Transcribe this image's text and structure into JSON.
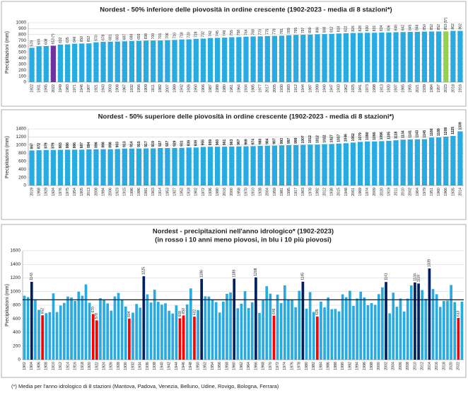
{
  "chart_data": [
    {
      "type": "bar",
      "title": "Nordest - 50% inferiore delle piovosità in ordine crescente (1902-2023 - media di 8 stazioni*)",
      "y_label": "Precipitazioni (mm)",
      "categories": [
        "1922",
        "1931",
        "1945",
        "2022",
        "1949",
        "1983",
        "1971",
        "1946",
        "1907",
        "1921",
        "1943",
        "2003",
        "1908",
        "1967",
        "1932",
        "1956",
        "1909",
        "1911",
        "1982",
        "2007",
        "1989",
        "1942",
        "1926",
        "1950",
        "1906",
        "1987",
        "1988",
        "1980",
        "1961",
        "1964",
        "1934",
        "1985",
        "1977",
        "2017",
        "2005",
        "1930",
        "1993",
        "1912",
        "1944",
        "1997",
        "1999",
        "1940",
        "1947",
        "1933",
        "1962",
        "1925",
        "1941",
        "1973",
        "1998",
        "1913",
        "1920",
        "1937",
        "1965",
        "1955",
        "2021",
        "1939",
        "1984",
        "1957",
        "2023",
        "2018",
        "1916"
      ],
      "values": [
        578,
        604,
        608,
        613,
        632,
        635,
        646,
        650,
        652,
        670,
        678,
        681,
        683,
        687,
        690,
        693,
        698,
        700,
        701,
        706,
        710,
        718,
        720,
        728,
        732,
        742,
        745,
        749,
        755,
        758,
        764,
        768,
        770,
        775,
        778,
        781,
        789,
        795,
        797,
        800,
        806,
        808,
        812,
        818,
        822,
        826,
        828,
        830,
        831,
        834,
        836,
        840,
        842,
        845,
        846,
        850,
        852,
        852,
        853,
        862,
        862
      ],
      "value_labels": [
        null,
        null,
        null,
        "613 (*)",
        null,
        null,
        null,
        null,
        null,
        null,
        null,
        null,
        null,
        null,
        null,
        null,
        null,
        null,
        null,
        null,
        null,
        null,
        null,
        null,
        null,
        null,
        null,
        null,
        null,
        null,
        null,
        null,
        null,
        null,
        null,
        null,
        null,
        null,
        null,
        null,
        null,
        null,
        null,
        null,
        null,
        null,
        null,
        null,
        null,
        null,
        null,
        null,
        null,
        null,
        null,
        null,
        null,
        null,
        "853 (5*)",
        null,
        null
      ],
      "color": "#29abe2",
      "colors": [
        "#29abe2",
        "#29abe2",
        "#29abe2",
        "#7030a0",
        "#29abe2",
        "#29abe2",
        "#29abe2",
        "#29abe2",
        "#29abe2",
        "#29abe2",
        "#29abe2",
        "#29abe2",
        "#29abe2",
        "#29abe2",
        "#29abe2",
        "#29abe2",
        "#29abe2",
        "#29abe2",
        "#29abe2",
        "#29abe2",
        "#29abe2",
        "#29abe2",
        "#29abe2",
        "#29abe2",
        "#29abe2",
        "#29abe2",
        "#29abe2",
        "#29abe2",
        "#29abe2",
        "#29abe2",
        "#29abe2",
        "#29abe2",
        "#29abe2",
        "#29abe2",
        "#29abe2",
        "#29abe2",
        "#29abe2",
        "#29abe2",
        "#29abe2",
        "#29abe2",
        "#29abe2",
        "#29abe2",
        "#29abe2",
        "#29abe2",
        "#29abe2",
        "#29abe2",
        "#29abe2",
        "#29abe2",
        "#29abe2",
        "#29abe2",
        "#29abe2",
        "#29abe2",
        "#29abe2",
        "#29abe2",
        "#29abe2",
        "#29abe2",
        "#29abe2",
        "#29abe2",
        "#92d050",
        "#29abe2",
        "#29abe2"
      ],
      "data_labels": "all",
      "ylim": [
        0,
        1000
      ],
      "yticks": [
        0,
        100,
        200,
        300,
        400,
        500,
        600,
        700,
        800,
        900,
        1000
      ],
      "grid": true
    },
    {
      "type": "bar",
      "title": "Nordest - 50% superiore delle piovosità in ordine crescente (1902-2023 - media di 8 stazioni*)",
      "y_label": "Precipitazioni (mm)",
      "categories": [
        "2019",
        "1968",
        "1929",
        "1924",
        "1976",
        "1975",
        "1954",
        "1905",
        "2013",
        "2008",
        "1994",
        "2006",
        "1923",
        "1915",
        "1996",
        "1986",
        "1991",
        "1903",
        "1914",
        "1953",
        "1927",
        "1952",
        "1918",
        "1902",
        "1972",
        "1936",
        "1990",
        "2016",
        "2000",
        "1958",
        "1970",
        "1910",
        "1928",
        "2004",
        "1959",
        "1981",
        "1995",
        "1917",
        "1963",
        "1978",
        "1992",
        "2012",
        "1938",
        "2015",
        "1948",
        "2001",
        "1969",
        "1974",
        "2009",
        "2020",
        "1919",
        "2011",
        "2010",
        "2002",
        "1904",
        "1979",
        "1951",
        "1960",
        "1966",
        "1935",
        "2014"
      ],
      "values": [
        867,
        872,
        879,
        879,
        883,
        886,
        886,
        887,
        894,
        896,
        898,
        898,
        903,
        913,
        914,
        915,
        917,
        919,
        927,
        927,
        929,
        931,
        939,
        939,
        955,
        959,
        960,
        961,
        963,
        967,
        969,
        974,
        980,
        984,
        987,
        993,
        997,
        999,
        1007,
        1012,
        1012,
        1022,
        1027,
        1037,
        1046,
        1062,
        1079,
        1090,
        1090,
        1096,
        1105,
        1118,
        1134,
        1141,
        1143,
        1145,
        1186,
        1189,
        1208,
        1225,
        1339
      ],
      "color": "#29abe2",
      "data_labels": "all",
      "ylim": [
        0,
        1400
      ],
      "yticks": [
        0,
        200,
        400,
        600,
        800,
        1000,
        1200,
        1400
      ],
      "grid": true
    },
    {
      "type": "bar",
      "title": "Nordest - precipitazioni nell'anno idrologico* (1902-2023)",
      "subtitle": "(in rosso  i 10 anni meno piovosi, in blu i 10  più piovosi)",
      "y_label": "Precipitazioni  (mm)",
      "categories": [
        "1902",
        null,
        "1904",
        null,
        "1906",
        null,
        "1908",
        null,
        "1910",
        null,
        "1912",
        null,
        "1914",
        null,
        "1916",
        null,
        "1918",
        null,
        "1920",
        null,
        "1922",
        null,
        "1924",
        null,
        "1926",
        null,
        "1928",
        null,
        "1930",
        null,
        "1932",
        null,
        "1934",
        null,
        "1936",
        null,
        "1938",
        null,
        "1940",
        null,
        "1942",
        null,
        "1944",
        null,
        "1946",
        null,
        "1948",
        null,
        "1950",
        null,
        "1952",
        null,
        "1954",
        null,
        "1956",
        null,
        "1958",
        null,
        "1960",
        null,
        "1962",
        null,
        "1964",
        null,
        "1966",
        null,
        "1968",
        null,
        "1970",
        null,
        "1972",
        null,
        "1974",
        null,
        "1976",
        null,
        "1978",
        null,
        "1980",
        null,
        "1982",
        null,
        "1984",
        null,
        "1986",
        null,
        "1988",
        null,
        "1990",
        null,
        "1992",
        null,
        "1994",
        null,
        "1996",
        null,
        "1998",
        null,
        "2000",
        null,
        "2002",
        null,
        "2004",
        null,
        "2006",
        null,
        "2008",
        null,
        "2010",
        null,
        "2012",
        null,
        "2014",
        null,
        "2016",
        null,
        "2018",
        null,
        "2020",
        null,
        "2022",
        null
      ],
      "values": [
        939,
        919,
        1143,
        887,
        732,
        652,
        683,
        698,
        974,
        700,
        795,
        834,
        927,
        913,
        862,
        999,
        939,
        1105,
        836,
        670,
        578,
        903,
        879,
        826,
        720,
        929,
        980,
        879,
        781,
        604,
        690,
        818,
        764,
        1225,
        959,
        840,
        1027,
        850,
        808,
        828,
        718,
        678,
        797,
        608,
        650,
        812,
        1046,
        632,
        728,
        1186,
        931,
        927,
        886,
        845,
        693,
        852,
        967,
        987,
        1189,
        755,
        822,
        1007,
        758,
        842,
        1208,
        687,
        872,
        1079,
        969,
        646,
        955,
        830,
        1090,
        886,
        883,
        770,
        1012,
        1145,
        749,
        993,
        701,
        635,
        852,
        768,
        915,
        742,
        745,
        710,
        960,
        917,
        1012,
        789,
        898,
        997,
        914,
        800,
        831,
        806,
        963,
        1062,
        1141,
        681,
        984,
        778,
        898,
        706,
        896,
        1090,
        1134,
        1118,
        1022,
        894,
        1339,
        1037,
        961,
        775,
        862,
        867,
        1096,
        846,
        613,
        853
      ],
      "color": "#29abe2",
      "colors": [
        "#29abe2",
        "#29abe2",
        "#002060",
        "#29abe2",
        "#29abe2",
        "#ff0000",
        "#29abe2",
        "#29abe2",
        "#29abe2",
        "#29abe2",
        "#29abe2",
        "#29abe2",
        "#29abe2",
        "#29abe2",
        "#29abe2",
        "#29abe2",
        "#29abe2",
        "#29abe2",
        "#29abe2",
        "#ff0000",
        "#ff0000",
        "#29abe2",
        "#29abe2",
        "#29abe2",
        "#29abe2",
        "#29abe2",
        "#29abe2",
        "#29abe2",
        "#29abe2",
        "#ff0000",
        "#29abe2",
        "#29abe2",
        "#29abe2",
        "#002060",
        "#29abe2",
        "#29abe2",
        "#29abe2",
        "#29abe2",
        "#29abe2",
        "#29abe2",
        "#29abe2",
        "#29abe2",
        "#29abe2",
        "#ff0000",
        "#ff0000",
        "#29abe2",
        "#29abe2",
        "#ff0000",
        "#29abe2",
        "#002060",
        "#29abe2",
        "#29abe2",
        "#29abe2",
        "#29abe2",
        "#29abe2",
        "#29abe2",
        "#29abe2",
        "#29abe2",
        "#002060",
        "#29abe2",
        "#29abe2",
        "#29abe2",
        "#29abe2",
        "#29abe2",
        "#002060",
        "#29abe2",
        "#29abe2",
        "#29abe2",
        "#29abe2",
        "#ff0000",
        "#29abe2",
        "#29abe2",
        "#29abe2",
        "#29abe2",
        "#29abe2",
        "#29abe2",
        "#29abe2",
        "#002060",
        "#29abe2",
        "#29abe2",
        "#29abe2",
        "#ff0000",
        "#29abe2",
        "#29abe2",
        "#29abe2",
        "#29abe2",
        "#29abe2",
        "#29abe2",
        "#29abe2",
        "#29abe2",
        "#29abe2",
        "#29abe2",
        "#29abe2",
        "#29abe2",
        "#29abe2",
        "#29abe2",
        "#29abe2",
        "#29abe2",
        "#29abe2",
        "#29abe2",
        "#002060",
        "#29abe2",
        "#29abe2",
        "#29abe2",
        "#29abe2",
        "#29abe2",
        "#29abe2",
        "#29abe2",
        "#002060",
        "#002060",
        "#29abe2",
        "#29abe2",
        "#002060",
        "#29abe2",
        "#29abe2",
        "#29abe2",
        "#29abe2",
        "#29abe2",
        "#29abe2",
        "#29abe2",
        "#ff0000",
        "#29abe2"
      ],
      "data_labels": "highlighted",
      "mean_line": {
        "value": 880,
        "color": "#000000"
      },
      "ylim": [
        0,
        1600
      ],
      "yticks": [
        0,
        200,
        400,
        600,
        800,
        1000,
        1200,
        1400,
        1600
      ],
      "grid": true
    }
  ],
  "footnote": "(*) Media per l'anno idrologico di 8 stazioni  (Mantova, Padova, Venezia, Belluno, Udine, Rovigo, Bologna, Ferrara)"
}
